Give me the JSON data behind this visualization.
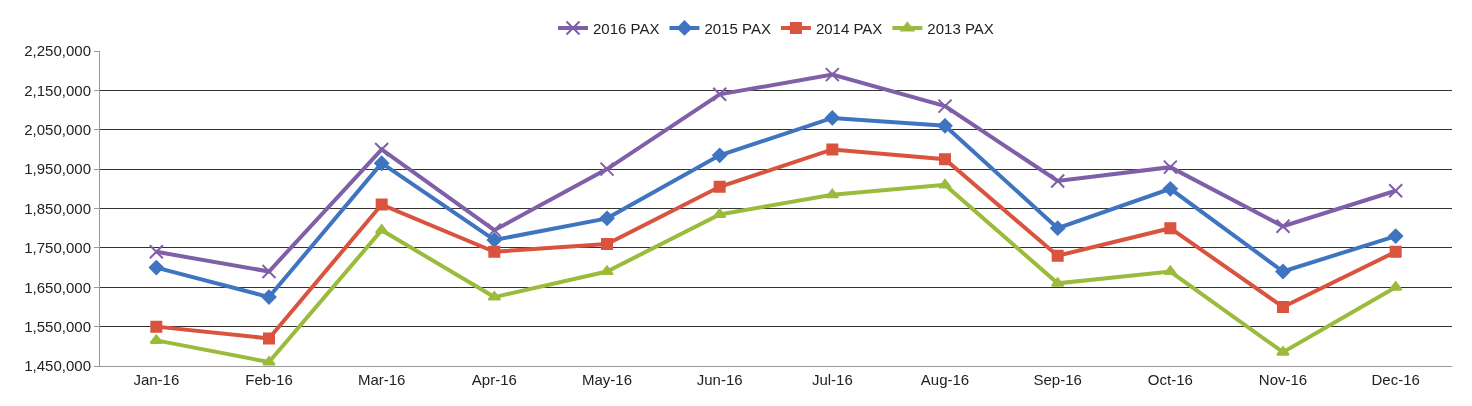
{
  "chart_data": {
    "type": "line",
    "categories": [
      "Jan-16",
      "Feb-16",
      "Mar-16",
      "Apr-16",
      "May-16",
      "Jun-16",
      "Jul-16",
      "Aug-16",
      "Sep-16",
      "Oct-16",
      "Nov-16",
      "Dec-16"
    ],
    "series": [
      {
        "name": "2016 PAX",
        "color": "#7f5fa8",
        "marker": "cross",
        "values": [
          1740000,
          1690000,
          2000000,
          1795000,
          1950000,
          2140000,
          2190000,
          2110000,
          1920000,
          1955000,
          1805000,
          1895000
        ]
      },
      {
        "name": "2015 PAX",
        "color": "#3f74c0",
        "marker": "diamond",
        "values": [
          1700000,
          1625000,
          1965000,
          1770000,
          1825000,
          1985000,
          2080000,
          2060000,
          1800000,
          1900000,
          1690000,
          1780000
        ]
      },
      {
        "name": "2014 PAX",
        "color": "#d9533f",
        "marker": "square",
        "values": [
          1550000,
          1520000,
          1860000,
          1740000,
          1760000,
          1905000,
          2000000,
          1975000,
          1730000,
          1800000,
          1600000,
          1740000
        ]
      },
      {
        "name": "2013 PAX",
        "color": "#9bbb3c",
        "marker": "triangle",
        "values": [
          1515000,
          1460000,
          1795000,
          1625000,
          1690000,
          1835000,
          1885000,
          1910000,
          1660000,
          1690000,
          1485000,
          1650000
        ]
      }
    ],
    "ylim": [
      1450000,
      2250000
    ],
    "yticks": [
      {
        "value": 1450000,
        "label": "1,450,000"
      },
      {
        "value": 1550000,
        "label": "1,550,000"
      },
      {
        "value": 1650000,
        "label": "1,650,000"
      },
      {
        "value": 1750000,
        "label": "1,750,000"
      },
      {
        "value": 1850000,
        "label": "1,850,000"
      },
      {
        "value": 1950000,
        "label": "1,950,000"
      },
      {
        "value": 2050000,
        "label": "2,050,000"
      },
      {
        "value": 2150000,
        "label": "2,150,000"
      },
      {
        "value": 2250000,
        "label": "2,250,000"
      }
    ],
    "grid": "y",
    "legend": "top",
    "line_style": "solid"
  }
}
